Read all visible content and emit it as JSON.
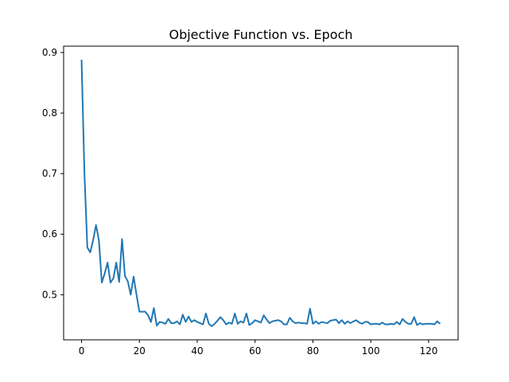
{
  "chart_data": {
    "type": "line",
    "title": "Objective Function vs. Epoch",
    "xlabel": "",
    "ylabel": "",
    "xlim": [
      -6.2,
      130.2
    ],
    "ylim": [
      0.4255,
      0.9105
    ],
    "xticks": [
      0,
      20,
      40,
      60,
      80,
      100,
      120
    ],
    "yticks": [
      0.5,
      0.6,
      0.7,
      0.8,
      0.9
    ],
    "xtick_labels": [
      "0",
      "20",
      "40",
      "60",
      "80",
      "100",
      "120"
    ],
    "ytick_labels": [
      "0.5",
      "0.6",
      "0.7",
      "0.8",
      "0.9"
    ],
    "grid": false,
    "series": [
      {
        "color": "#1f77b4",
        "x": [
          0,
          1,
          2,
          3,
          4,
          5,
          6,
          7,
          8,
          9,
          10,
          11,
          12,
          13,
          14,
          15,
          16,
          17,
          18,
          19,
          20,
          21,
          22,
          23,
          24,
          25,
          26,
          27,
          28,
          29,
          30,
          31,
          32,
          33,
          34,
          35,
          36,
          37,
          38,
          39,
          40,
          41,
          42,
          43,
          44,
          45,
          46,
          47,
          48,
          49,
          50,
          51,
          52,
          53,
          54,
          55,
          56,
          57,
          58,
          59,
          60,
          61,
          62,
          63,
          64,
          65,
          66,
          67,
          68,
          69,
          70,
          71,
          72,
          73,
          74,
          75,
          76,
          77,
          78,
          79,
          80,
          81,
          82,
          83,
          84,
          85,
          86,
          87,
          88,
          89,
          90,
          91,
          92,
          93,
          94,
          95,
          96,
          97,
          98,
          99,
          100,
          101,
          102,
          103,
          104,
          105,
          106,
          107,
          108,
          109,
          110,
          111,
          112,
          113,
          114,
          115,
          116,
          117,
          118,
          119,
          120,
          121,
          122,
          123,
          124
        ],
        "y": [
          0.888,
          0.7,
          0.578,
          0.57,
          0.59,
          0.615,
          0.59,
          0.52,
          0.535,
          0.553,
          0.52,
          0.527,
          0.553,
          0.521,
          0.592,
          0.531,
          0.522,
          0.5,
          0.53,
          0.5,
          0.472,
          0.472,
          0.472,
          0.466,
          0.455,
          0.478,
          0.449,
          0.455,
          0.454,
          0.452,
          0.46,
          0.453,
          0.453,
          0.456,
          0.451,
          0.467,
          0.455,
          0.464,
          0.455,
          0.458,
          0.455,
          0.453,
          0.451,
          0.469,
          0.452,
          0.448,
          0.452,
          0.457,
          0.463,
          0.458,
          0.451,
          0.454,
          0.452,
          0.469,
          0.452,
          0.456,
          0.454,
          0.469,
          0.45,
          0.453,
          0.458,
          0.456,
          0.454,
          0.466,
          0.459,
          0.453,
          0.456,
          0.457,
          0.458,
          0.456,
          0.451,
          0.451,
          0.462,
          0.456,
          0.453,
          0.454,
          0.453,
          0.453,
          0.452,
          0.477,
          0.452,
          0.456,
          0.452,
          0.455,
          0.454,
          0.453,
          0.457,
          0.458,
          0.459,
          0.453,
          0.458,
          0.452,
          0.456,
          0.453,
          0.456,
          0.458,
          0.454,
          0.452,
          0.455,
          0.455,
          0.451,
          0.452,
          0.452,
          0.451,
          0.454,
          0.451,
          0.451,
          0.452,
          0.451,
          0.455,
          0.451,
          0.46,
          0.455,
          0.452,
          0.452,
          0.463,
          0.45,
          0.453,
          0.451,
          0.452,
          0.452,
          0.452,
          0.451,
          0.456,
          0.452
        ]
      }
    ]
  }
}
